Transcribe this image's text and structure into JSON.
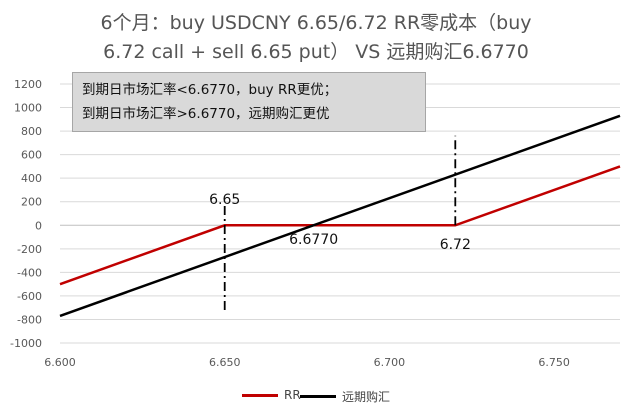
{
  "title": {
    "line1": "6个月：buy USDCNY  6.65/6.72 RR零成本（buy",
    "line2": "6.72 call + sell 6.65 put）  VS  远期购汇6.6770"
  },
  "note": {
    "line1": "到期日市场汇率<6.6770，buy RR更优；",
    "line2": "到期日市场汇率>6.6770，远期购汇更优"
  },
  "colors": {
    "rr": "#c00000",
    "forward": "#000000",
    "grid": "#d9d9d9",
    "axis": "#bfbfbf"
  },
  "chart_data": {
    "type": "line",
    "xlim": [
      6.6,
      6.77
    ],
    "ylim": [
      -1000,
      1200
    ],
    "x_ticks": [
      "6.600",
      "6.650",
      "6.700",
      "6.750"
    ],
    "x_tick_values": [
      6.6,
      6.65,
      6.7,
      6.75
    ],
    "y_ticks": [
      1200,
      1000,
      800,
      600,
      400,
      200,
      0,
      -200,
      -400,
      -600,
      -800,
      -1000
    ],
    "grid": "horizontal",
    "legend_position": "bottom",
    "series": [
      {
        "name": "RR",
        "color": "#c00000",
        "x": [
          6.6,
          6.65,
          6.72,
          6.77
        ],
        "y": [
          -500,
          0,
          0,
          500
        ]
      },
      {
        "name": "远期购汇",
        "color": "#000000",
        "x": [
          6.6,
          6.77
        ],
        "y": [
          -770,
          930
        ]
      }
    ],
    "vlines": [
      {
        "x": 6.65,
        "y_from": -720,
        "y_to": 200
      },
      {
        "x": 6.72,
        "y_from": 0,
        "y_to": 760
      }
    ],
    "annotations": [
      {
        "text": "6.65",
        "x": 6.65,
        "y": 180
      },
      {
        "text": "6.6770",
        "x": 6.677,
        "y": -160
      },
      {
        "text": "6.72",
        "x": 6.72,
        "y": -200
      }
    ]
  }
}
